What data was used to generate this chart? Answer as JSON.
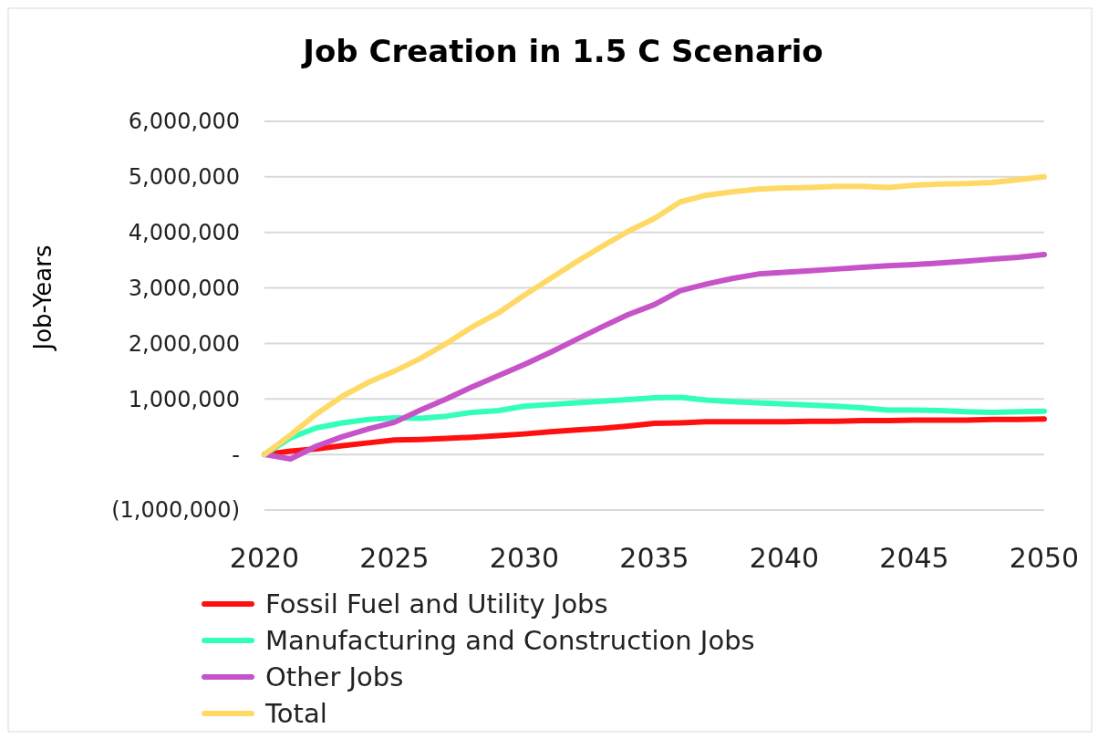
{
  "chart_data": {
    "type": "line",
    "title": "Job Creation in 1.5 C Scenario",
    "ylabel": "Job-Years",
    "x": [
      2020,
      2021,
      2022,
      2023,
      2024,
      2025,
      2026,
      2027,
      2028,
      2029,
      2030,
      2031,
      2032,
      2033,
      2034,
      2035,
      2036,
      2037,
      2038,
      2039,
      2040,
      2041,
      2042,
      2043,
      2044,
      2045,
      2046,
      2047,
      2048,
      2049,
      2050
    ],
    "xlim": [
      2020,
      2050
    ],
    "xticks": [
      2020,
      2025,
      2030,
      2035,
      2040,
      2045,
      2050
    ],
    "ylim": [
      -1000000,
      6000000
    ],
    "yticks": [
      {
        "value": -1000000,
        "label": "(1,000,000)"
      },
      {
        "value": 0,
        "label": "-"
      },
      {
        "value": 1000000,
        "label": "1,000,000"
      },
      {
        "value": 2000000,
        "label": "2,000,000"
      },
      {
        "value": 3000000,
        "label": "3,000,000"
      },
      {
        "value": 4000000,
        "label": "4,000,000"
      },
      {
        "value": 5000000,
        "label": "5,000,000"
      },
      {
        "value": 6000000,
        "label": "6,000,000"
      }
    ],
    "grid": "y",
    "legend": "bottom",
    "line_style": "solid",
    "marker": "none",
    "series": [
      {
        "name": "Fossil Fuel and Utility Jobs",
        "color": "#ff1010",
        "values": [
          0,
          60000,
          100000,
          160000,
          210000,
          260000,
          270000,
          290000,
          310000,
          340000,
          370000,
          410000,
          440000,
          470000,
          510000,
          560000,
          570000,
          590000,
          590000,
          590000,
          590000,
          600000,
          600000,
          610000,
          610000,
          620000,
          620000,
          620000,
          630000,
          630000,
          640000
        ]
      },
      {
        "name": "Manufacturing and Construction Jobs",
        "color": "#33ffbb",
        "values": [
          0,
          300000,
          480000,
          570000,
          630000,
          660000,
          650000,
          690000,
          760000,
          790000,
          870000,
          900000,
          930000,
          960000,
          990000,
          1020000,
          1030000,
          980000,
          950000,
          930000,
          910000,
          890000,
          870000,
          840000,
          800000,
          800000,
          790000,
          770000,
          760000,
          770000,
          780000
        ]
      },
      {
        "name": "Other Jobs",
        "color": "#c653c8",
        "values": [
          0,
          -80000,
          150000,
          320000,
          460000,
          580000,
          800000,
          1000000,
          1220000,
          1420000,
          1620000,
          1840000,
          2070000,
          2300000,
          2520000,
          2700000,
          2950000,
          3070000,
          3170000,
          3250000,
          3280000,
          3310000,
          3340000,
          3370000,
          3400000,
          3420000,
          3450000,
          3480000,
          3520000,
          3550000,
          3600000
        ]
      },
      {
        "name": "Total",
        "color": "#ffd966",
        "values": [
          0,
          350000,
          730000,
          1050000,
          1300000,
          1500000,
          1730000,
          2000000,
          2300000,
          2550000,
          2870000,
          3170000,
          3470000,
          3750000,
          4020000,
          4250000,
          4550000,
          4670000,
          4730000,
          4780000,
          4800000,
          4810000,
          4830000,
          4830000,
          4810000,
          4850000,
          4870000,
          4880000,
          4900000,
          4950000,
          5000000
        ]
      }
    ]
  }
}
